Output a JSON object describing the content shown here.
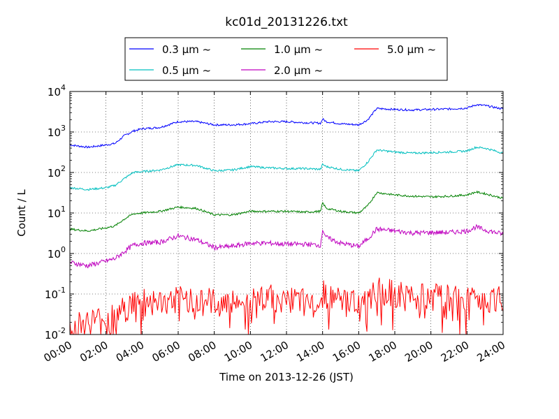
{
  "chart_data": {
    "type": "line",
    "title": "kc01d_20131226.txt",
    "xlabel": "Time on 2013-12-26 (JST)",
    "ylabel": "Count / L",
    "yscale": "log",
    "ylim": [
      0.01,
      10000
    ],
    "xlim": [
      "00:00",
      "24:00"
    ],
    "grid": true,
    "legend_position": "top, above plot",
    "x_ticks": [
      "00:00",
      "02:00",
      "04:00",
      "06:00",
      "08:00",
      "10:00",
      "12:00",
      "14:00",
      "16:00",
      "18:00",
      "20:00",
      "22:00",
      "24:00"
    ],
    "y_ticks": [
      {
        "base": "10",
        "exp": "-2"
      },
      {
        "base": "10",
        "exp": "-1"
      },
      {
        "base": "10",
        "exp": "0"
      },
      {
        "base": "10",
        "exp": "1"
      },
      {
        "base": "10",
        "exp": "2"
      },
      {
        "base": "10",
        "exp": "3"
      },
      {
        "base": "10",
        "exp": "4"
      }
    ],
    "x_hours": [
      0,
      1,
      2,
      2.5,
      3,
      3.5,
      4,
      5,
      6,
      7,
      8,
      9,
      10,
      11,
      12,
      13,
      13.9,
      14,
      14.2,
      15,
      16,
      16.5,
      17,
      18,
      19,
      20,
      21,
      22,
      22.5,
      23,
      24
    ],
    "series": [
      {
        "name": "0.3 µm ~",
        "color": "#0000ff",
        "values": [
          480,
          420,
          480,
          520,
          800,
          1050,
          1200,
          1300,
          1800,
          1800,
          1500,
          1500,
          1600,
          1800,
          1800,
          1700,
          1650,
          2100,
          1800,
          1600,
          1500,
          2000,
          3800,
          3600,
          3500,
          3600,
          3700,
          3900,
          4700,
          4500,
          3700
        ]
      },
      {
        "name": "0.5 µm ~",
        "color": "#00bfbf",
        "values": [
          42,
          38,
          42,
          48,
          70,
          100,
          105,
          115,
          155,
          150,
          110,
          115,
          140,
          130,
          125,
          125,
          120,
          160,
          140,
          120,
          110,
          180,
          360,
          320,
          300,
          310,
          320,
          340,
          420,
          400,
          300
        ]
      },
      {
        "name": "1.0 µm ~",
        "color": "#008000",
        "values": [
          4,
          3.6,
          4.3,
          4.8,
          7,
          9.5,
          10,
          11,
          14,
          13,
          9,
          9,
          11,
          11,
          11,
          10.5,
          11,
          18,
          13,
          11,
          10,
          15,
          32,
          28,
          26,
          25,
          26,
          28,
          33,
          30,
          23
        ]
      },
      {
        "name": "2.0 µm ~",
        "color": "#bf00bf",
        "values": [
          0.6,
          0.5,
          0.65,
          0.75,
          1.1,
          1.6,
          1.8,
          1.9,
          2.7,
          2.2,
          1.4,
          1.5,
          1.8,
          1.8,
          1.7,
          1.7,
          1.6,
          4.0,
          2.5,
          1.8,
          1.5,
          2.3,
          4.0,
          3.6,
          3.2,
          3.3,
          3.3,
          3.6,
          4.5,
          3.8,
          3.0
        ]
      },
      {
        "name": "5.0 µm ~",
        "color": "#ff0000",
        "values": [
          0.015,
          0.02,
          0.025,
          0.03,
          0.04,
          0.06,
          0.07,
          0.06,
          0.07,
          0.08,
          0.06,
          0.06,
          0.07,
          0.08,
          0.07,
          0.06,
          0.07,
          0.2,
          0.08,
          0.07,
          0.07,
          0.1,
          0.12,
          0.1,
          0.08,
          0.08,
          0.08,
          0.07,
          0.08,
          0.08,
          0.08
        ]
      }
    ]
  }
}
